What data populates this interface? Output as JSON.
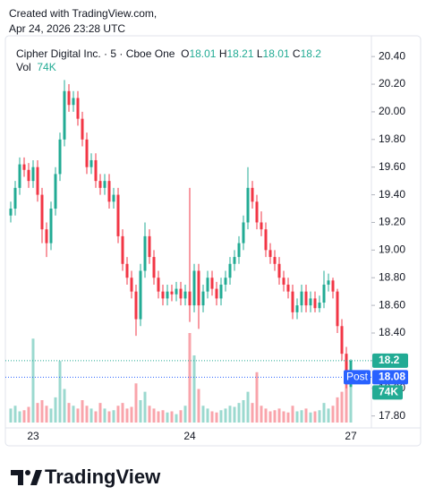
{
  "chart_data": {
    "type": "candlestick",
    "watermark": [
      "Created with TradingView.com,",
      "Apr 24, 2026 23:28 UTC"
    ],
    "title": "Cipher Digital Inc. · 5 · Cboe One",
    "ohlc_labels": [
      "O",
      "H",
      "L",
      "C"
    ],
    "brand": "TradingView",
    "up_color": "#22ab94",
    "down_color": "#f23645",
    "grid": false,
    "categories": [
      null,
      null,
      null,
      null,
      null,
      "23",
      null,
      null,
      null,
      null,
      null,
      null,
      null,
      null,
      null,
      null,
      null,
      null,
      null,
      null,
      null,
      null,
      null,
      null,
      null,
      null,
      null,
      null,
      null,
      null,
      null,
      null,
      null,
      null,
      null,
      null,
      null,
      null,
      null,
      null,
      "24",
      null,
      null,
      null,
      null,
      null,
      null,
      null,
      null,
      null,
      null,
      null,
      null,
      null,
      null,
      null,
      null,
      null,
      null,
      null,
      null,
      null,
      null,
      null,
      null,
      null,
      null,
      null,
      null,
      null,
      null,
      null,
      null,
      null,
      null,
      null,
      "27"
    ],
    "open": [
      19.25,
      19.3,
      19.45,
      19.62,
      19.58,
      19.5,
      19.6,
      19.4,
      19.15,
      19.05,
      19.3,
      19.55,
      19.8,
      20.15,
      20.05,
      20.1,
      19.95,
      19.8,
      19.6,
      19.65,
      19.5,
      19.45,
      19.5,
      19.35,
      19.4,
      19.1,
      18.9,
      18.8,
      18.7,
      18.5,
      18.85,
      19.1,
      18.95,
      18.8,
      18.7,
      18.65,
      18.7,
      18.68,
      18.72,
      18.65,
      18.7,
      18.6,
      18.85,
      18.6,
      18.7,
      18.8,
      18.72,
      18.65,
      18.75,
      18.8,
      18.9,
      18.95,
      19.05,
      19.2,
      19.45,
      19.35,
      19.2,
      19.15,
      19.0,
      18.95,
      18.9,
      18.8,
      18.75,
      18.7,
      18.55,
      18.6,
      18.7,
      18.6,
      18.65,
      18.58,
      18.62,
      18.75,
      18.78,
      18.7,
      18.45,
      18.25,
      18.01
    ],
    "high": [
      19.35,
      19.5,
      19.67,
      19.67,
      19.63,
      19.65,
      19.65,
      19.45,
      19.2,
      19.35,
      19.6,
      19.85,
      20.23,
      20.2,
      20.15,
      20.15,
      20.0,
      19.85,
      19.7,
      19.7,
      19.55,
      19.55,
      19.55,
      19.45,
      19.45,
      19.15,
      18.95,
      18.85,
      18.75,
      18.9,
      19.2,
      19.15,
      19.0,
      18.85,
      18.75,
      18.75,
      18.75,
      18.77,
      18.77,
      18.75,
      19.45,
      18.9,
      18.9,
      18.75,
      18.85,
      18.85,
      18.77,
      18.8,
      18.85,
      18.95,
      19.0,
      19.1,
      19.25,
      19.6,
      19.5,
      19.4,
      19.28,
      19.2,
      19.05,
      19.0,
      18.95,
      18.85,
      18.8,
      18.75,
      18.65,
      18.75,
      18.75,
      18.7,
      18.7,
      18.67,
      18.85,
      18.83,
      18.8,
      18.72,
      18.5,
      18.3,
      18.21
    ],
    "low": [
      19.2,
      19.25,
      19.4,
      19.53,
      19.45,
      19.45,
      19.35,
      19.05,
      18.95,
      19.0,
      19.25,
      19.5,
      19.75,
      20.0,
      20.0,
      19.9,
      19.75,
      19.55,
      19.55,
      19.45,
      19.4,
      19.4,
      19.3,
      19.3,
      19.05,
      18.85,
      18.75,
      18.65,
      18.38,
      18.45,
      18.8,
      18.9,
      18.75,
      18.65,
      18.6,
      18.6,
      18.63,
      18.63,
      18.6,
      18.6,
      18.48,
      18.55,
      18.43,
      18.55,
      18.65,
      18.67,
      18.6,
      18.6,
      18.7,
      18.75,
      18.85,
      18.9,
      19.0,
      19.15,
      19.3,
      19.15,
      19.1,
      18.95,
      18.9,
      18.85,
      18.75,
      18.7,
      18.65,
      18.5,
      18.5,
      18.55,
      18.55,
      18.55,
      18.55,
      18.55,
      18.58,
      18.7,
      18.65,
      18.4,
      18.2,
      18.0,
      18.01
    ],
    "close": [
      19.3,
      19.45,
      19.62,
      19.58,
      19.5,
      19.6,
      19.4,
      19.15,
      19.05,
      19.3,
      19.55,
      19.8,
      20.15,
      20.05,
      20.1,
      19.95,
      19.8,
      19.6,
      19.65,
      19.5,
      19.45,
      19.5,
      19.35,
      19.4,
      19.1,
      18.9,
      18.8,
      18.7,
      18.5,
      18.85,
      19.1,
      18.95,
      18.8,
      18.7,
      18.65,
      18.7,
      18.68,
      18.72,
      18.65,
      18.7,
      18.6,
      18.85,
      18.6,
      18.7,
      18.8,
      18.72,
      18.65,
      18.75,
      18.8,
      18.9,
      18.95,
      19.05,
      19.2,
      19.45,
      19.35,
      19.2,
      19.15,
      19.0,
      18.95,
      18.9,
      18.8,
      18.75,
      18.7,
      18.55,
      18.6,
      18.7,
      18.6,
      18.65,
      18.58,
      18.62,
      18.75,
      18.78,
      18.7,
      18.45,
      18.25,
      18.05,
      18.2
    ],
    "volume": {
      "name": "Vol",
      "last_label": "74K",
      "values": [
        25000,
        30000,
        20000,
        22000,
        28000,
        150000,
        35000,
        40000,
        30000,
        25000,
        45000,
        110000,
        60000,
        35000,
        30000,
        25000,
        40000,
        30000,
        25000,
        20000,
        35000,
        25000,
        20000,
        22000,
        30000,
        35000,
        25000,
        28000,
        70000,
        40000,
        55000,
        30000,
        25000,
        20000,
        22000,
        18000,
        20000,
        15000,
        22000,
        30000,
        160000,
        120000,
        60000,
        30000,
        25000,
        20000,
        18000,
        22000,
        25000,
        30000,
        28000,
        35000,
        40000,
        55000,
        35000,
        90000,
        30000,
        25000,
        20000,
        22000,
        25000,
        20000,
        18000,
        30000,
        20000,
        22000,
        25000,
        18000,
        20000,
        22000,
        35000,
        25000,
        30000,
        45000,
        55000,
        90000,
        74000
      ]
    },
    "post": {
      "label": "Post",
      "value": 18.08,
      "color": "#2962ff"
    },
    "ylim": [
      17.72,
      20.55
    ],
    "yticks": [
      {
        "value": 17.8,
        "label": "17.80"
      },
      {
        "value": 18.0,
        "label": "18.00"
      },
      {
        "value": 18.2,
        "label": "18.20"
      },
      {
        "value": 18.4,
        "label": "18.40"
      },
      {
        "value": 18.6,
        "label": "18.60"
      },
      {
        "value": 18.8,
        "label": "18.80"
      },
      {
        "value": 19.0,
        "label": "19.00"
      },
      {
        "value": 19.2,
        "label": "19.20"
      },
      {
        "value": 19.4,
        "label": "19.40"
      },
      {
        "value": 19.6,
        "label": "19.60"
      },
      {
        "value": 19.8,
        "label": "19.80"
      },
      {
        "value": 20.0,
        "label": "20.00"
      },
      {
        "value": 20.2,
        "label": "20.20"
      },
      {
        "value": 20.4,
        "label": "20.40"
      }
    ]
  }
}
